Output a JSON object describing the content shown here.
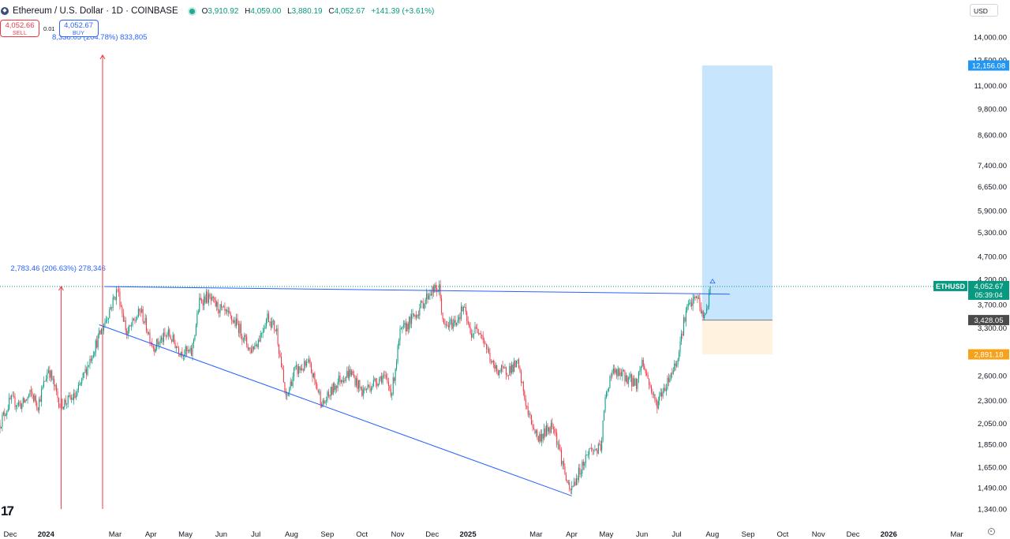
{
  "header": {
    "title": "Ethereum / U.S. Dollar · 1D · COINBASE",
    "open_label": "O",
    "open": "3,910.92",
    "high_label": "H",
    "high": "4,059.00",
    "low_label": "L",
    "low": "3,880.19",
    "close_label": "C",
    "close": "4,052.67",
    "change": "+141.39 (+3.61%)"
  },
  "trade": {
    "sell_price": "4,052.66",
    "sell_label": "SELL",
    "spread": "0.01",
    "buy_price": "4,052.67",
    "buy_label": "BUY"
  },
  "currency_select": "USD",
  "colors": {
    "up": "#089981",
    "down": "#f23645",
    "drawing": "#2962ff",
    "target_zone": "#bbdefb",
    "stop_zone": "#fdebd0"
  },
  "chart_data": {
    "type": "candlestick",
    "symbol": "ETHUSD",
    "interval": "1D",
    "y_scale": "log",
    "ylim": [
      1300,
      15000
    ],
    "y_ticks": [
      1340,
      1490,
      1650,
      1850,
      2050,
      2300,
      2600,
      2900,
      3300,
      3700,
      4200,
      4700,
      5300,
      5900,
      6650,
      7400,
      8600,
      9800,
      11000,
      12500,
      14000
    ],
    "y_tick_labels": [
      "1,340.00",
      "1,490.00",
      "1,650.00",
      "1,850.00",
      "2,050.00",
      "2,300.00",
      "2,600.00",
      "2,900.00",
      "3,300.00",
      "3,700.00",
      "4,200.00",
      "4,700.00",
      "5,300.00",
      "5,900.00",
      "6,650.00",
      "7,400.00",
      "8,600.00",
      "9,800.00",
      "11,000.00",
      "12,500.00",
      "14,000.00"
    ],
    "x_range": [
      "2023-12-01",
      "2026-03-15"
    ],
    "x_ticks": [
      {
        "date": "2023-12-01",
        "label": "Dec"
      },
      {
        "date": "2024-01-01",
        "label": "2024",
        "bold": true
      },
      {
        "date": "2024-03-01",
        "label": "Mar"
      },
      {
        "date": "2024-04-01",
        "label": "Apr"
      },
      {
        "date": "2024-05-01",
        "label": "May"
      },
      {
        "date": "2024-06-01",
        "label": "Jun"
      },
      {
        "date": "2024-07-01",
        "label": "Jul"
      },
      {
        "date": "2024-08-01",
        "label": "Aug"
      },
      {
        "date": "2024-09-01",
        "label": "Sep"
      },
      {
        "date": "2024-10-01",
        "label": "Oct"
      },
      {
        "date": "2024-11-01",
        "label": "Nov"
      },
      {
        "date": "2024-12-01",
        "label": "Dec"
      },
      {
        "date": "2025-01-01",
        "label": "2025",
        "bold": true
      },
      {
        "date": "2025-03-01",
        "label": "Mar"
      },
      {
        "date": "2025-04-01",
        "label": "Apr"
      },
      {
        "date": "2025-05-01",
        "label": "May"
      },
      {
        "date": "2025-06-01",
        "label": "Jun"
      },
      {
        "date": "2025-07-01",
        "label": "Jul"
      },
      {
        "date": "2025-08-01",
        "label": "Aug"
      },
      {
        "date": "2025-09-01",
        "label": "Sep"
      },
      {
        "date": "2025-10-01",
        "label": "Oct"
      },
      {
        "date": "2025-11-01",
        "label": "Nov"
      },
      {
        "date": "2025-12-01",
        "label": "Dec"
      },
      {
        "date": "2026-01-01",
        "label": "2026",
        "bold": true
      },
      {
        "date": "2026-03-01",
        "label": "Mar"
      }
    ],
    "price_path": [
      [
        "2023-12-01",
        2050
      ],
      [
        "2023-12-10",
        2300
      ],
      [
        "2023-12-20",
        2250
      ],
      [
        "2023-12-28",
        2380
      ],
      [
        "2024-01-03",
        2250
      ],
      [
        "2024-01-12",
        2700
      ],
      [
        "2024-01-22",
        2250
      ],
      [
        "2024-02-05",
        2350
      ],
      [
        "2024-02-20",
        2950
      ],
      [
        "2024-03-01",
        3400
      ],
      [
        "2024-03-12",
        4000
      ],
      [
        "2024-03-20",
        3200
      ],
      [
        "2024-04-01",
        3600
      ],
      [
        "2024-04-12",
        3000
      ],
      [
        "2024-04-25",
        3200
      ],
      [
        "2024-05-05",
        2950
      ],
      [
        "2024-05-15",
        2900
      ],
      [
        "2024-05-22",
        3750
      ],
      [
        "2024-05-28",
        3850
      ],
      [
        "2024-06-10",
        3600
      ],
      [
        "2024-06-24",
        3350
      ],
      [
        "2024-07-05",
        2950
      ],
      [
        "2024-07-12",
        3100
      ],
      [
        "2024-07-20",
        3500
      ],
      [
        "2024-07-28",
        3250
      ],
      [
        "2024-08-05",
        2300
      ],
      [
        "2024-08-12",
        2650
      ],
      [
        "2024-08-25",
        2750
      ],
      [
        "2024-09-06",
        2250
      ],
      [
        "2024-09-20",
        2550
      ],
      [
        "2024-09-30",
        2650
      ],
      [
        "2024-10-10",
        2400
      ],
      [
        "2024-10-28",
        2600
      ],
      [
        "2024-11-05",
        2400
      ],
      [
        "2024-11-12",
        3200
      ],
      [
        "2024-11-28",
        3600
      ],
      [
        "2024-12-08",
        3950
      ],
      [
        "2024-12-16",
        4000
      ],
      [
        "2024-12-20",
        3300
      ],
      [
        "2024-12-30",
        3400
      ],
      [
        "2025-01-06",
        3650
      ],
      [
        "2025-01-12",
        3200
      ],
      [
        "2025-01-20",
        3300
      ],
      [
        "2025-02-01",
        2700
      ],
      [
        "2025-02-10",
        2650
      ],
      [
        "2025-02-22",
        2750
      ],
      [
        "2025-03-03",
        2150
      ],
      [
        "2025-03-12",
        1900
      ],
      [
        "2025-03-25",
        2050
      ],
      [
        "2025-04-08",
        1450
      ],
      [
        "2025-04-15",
        1580
      ],
      [
        "2025-04-25",
        1800
      ],
      [
        "2025-05-05",
        1800
      ],
      [
        "2025-05-09",
        2300
      ],
      [
        "2025-05-14",
        2650
      ],
      [
        "2025-05-25",
        2600
      ],
      [
        "2025-06-05",
        2500
      ],
      [
        "2025-06-10",
        2800
      ],
      [
        "2025-06-22",
        2250
      ],
      [
        "2025-07-01",
        2500
      ],
      [
        "2025-07-10",
        2800
      ],
      [
        "2025-07-18",
        3600
      ],
      [
        "2025-07-28",
        3850
      ],
      [
        "2025-08-02",
        3450
      ],
      [
        "2025-08-06",
        3700
      ],
      [
        "2025-08-08",
        4052.67
      ]
    ],
    "drawings": {
      "resistance_line": {
        "from": [
          "2024-03-01",
          4050
        ],
        "to": [
          "2025-08-25",
          3900
        ]
      },
      "support_line": {
        "from": [
          "2024-02-25",
          3350
        ],
        "to": [
          "2025-04-10",
          1430
        ]
      },
      "measure_1": {
        "from": [
          "2024-01-23",
          1340
        ],
        "to": [
          "2024-01-23",
          4050
        ],
        "label": "2,783.46 (206.63%) 278,346"
      },
      "measure_2": {
        "from": [
          "2024-02-28",
          1340
        ],
        "to": [
          "2024-02-28",
          12800
        ],
        "label": "8,338.05 (204.78%) 833,805"
      },
      "long_position": {
        "start": "2025-08-01",
        "end": "2025-10-01",
        "entry": 3428.05,
        "target": 12156.08,
        "stop": 2891.18
      }
    },
    "price_labels": [
      {
        "value": 12156.08,
        "text": "12,156.08",
        "color": "#2196f3"
      },
      {
        "value": 4052.67,
        "text": "4,052.67",
        "sub": "05:39:04",
        "tag": "ETHUSD",
        "color": "#089981"
      },
      {
        "value": 3428.05,
        "text": "3,428.05",
        "color": "#4a4a4a"
      },
      {
        "value": 2891.18,
        "text": "2,891.18",
        "color": "#f7a21b"
      }
    ]
  }
}
